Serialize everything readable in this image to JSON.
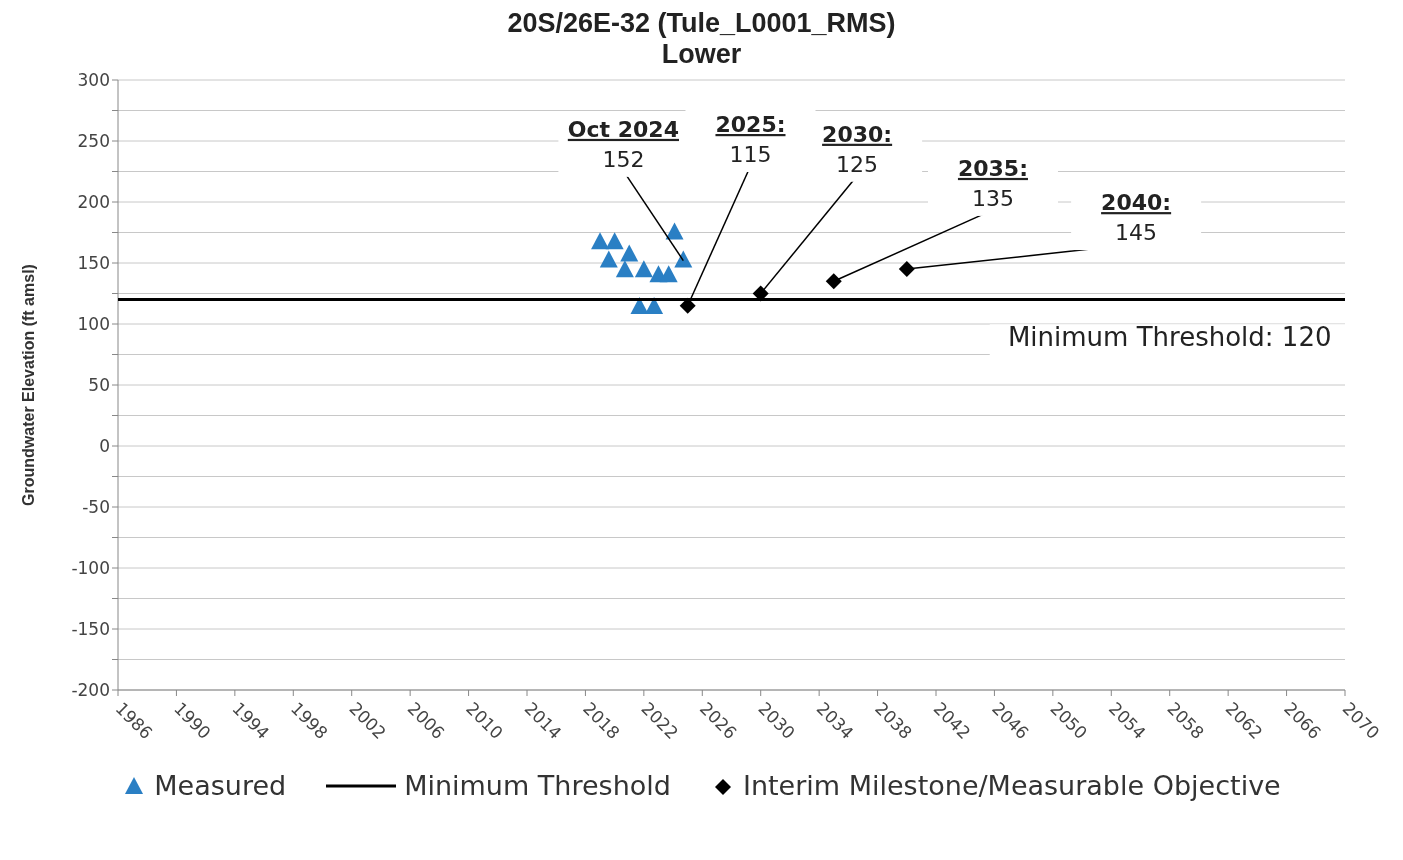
{
  "chart_data": {
    "type": "scatter",
    "title": "20S/26E-32 (Tule_L0001_RMS)",
    "subtitle": "Lower",
    "ylabel": "Groundwater Elevation (ft amsl)",
    "xlim": [
      1986,
      2070
    ],
    "xticks": [
      1986,
      1990,
      1994,
      1998,
      2002,
      2006,
      2010,
      2014,
      2018,
      2022,
      2026,
      2030,
      2034,
      2038,
      2042,
      2046,
      2050,
      2054,
      2058,
      2062,
      2066,
      2070
    ],
    "ylim": [
      -200,
      300
    ],
    "yticks": [
      -200,
      {
        "value": -175,
        "label": null
      },
      -150,
      {
        "value": -125,
        "label": null
      },
      -100,
      {
        "value": -75,
        "label": null
      },
      -50,
      {
        "value": -25,
        "label": null
      },
      0,
      {
        "value": 25,
        "label": null
      },
      50,
      {
        "value": 75,
        "label": null
      },
      100,
      {
        "value": 125,
        "label": null
      },
      150,
      {
        "value": 175,
        "label": null
      },
      200,
      {
        "value": 225,
        "label": null
      },
      250,
      {
        "value": 275,
        "label": null
      },
      300
    ],
    "grid": "y",
    "legend": "bottom",
    "series": [
      {
        "name": "Measured",
        "marker": "triangle",
        "color": "#2a7fc4",
        "x": [
          2019.0,
          2020.0,
          2019.6,
          2021.0,
          2020.7,
          2022.0,
          2023.0,
          2023.7,
          2024.1,
          2024.7,
          2021.7,
          2022.7
        ],
        "values": [
          167,
          167,
          152,
          157,
          144,
          144,
          140,
          140,
          175,
          152,
          114,
          114
        ]
      },
      {
        "name": "Minimum Threshold",
        "type": "line",
        "marker": "none",
        "line_style": "solid",
        "color": "#000000",
        "x": [
          1986,
          2070
        ],
        "values": [
          120,
          120
        ]
      },
      {
        "name": "Interim Milestone/Measurable Objective",
        "marker": "diamond",
        "color": "#000000",
        "x": [
          2025,
          2030,
          2035,
          2040
        ],
        "values": [
          115,
          125,
          135,
          145
        ]
      }
    ],
    "annotations": [
      {
        "text": "Oct 2024\n152",
        "x": 2024.7,
        "y": 152
      },
      {
        "text": "2025:\n115",
        "x": 2025,
        "y": 115
      },
      {
        "text": "2030:\n125",
        "x": 2030,
        "y": 125
      },
      {
        "text": "2035:\n135",
        "x": 2035,
        "y": 135
      },
      {
        "text": "2040:\n145",
        "x": 2040,
        "y": 145
      },
      {
        "text": "Minimum Threshold: 120",
        "x": 2058,
        "y": 120
      }
    ]
  }
}
